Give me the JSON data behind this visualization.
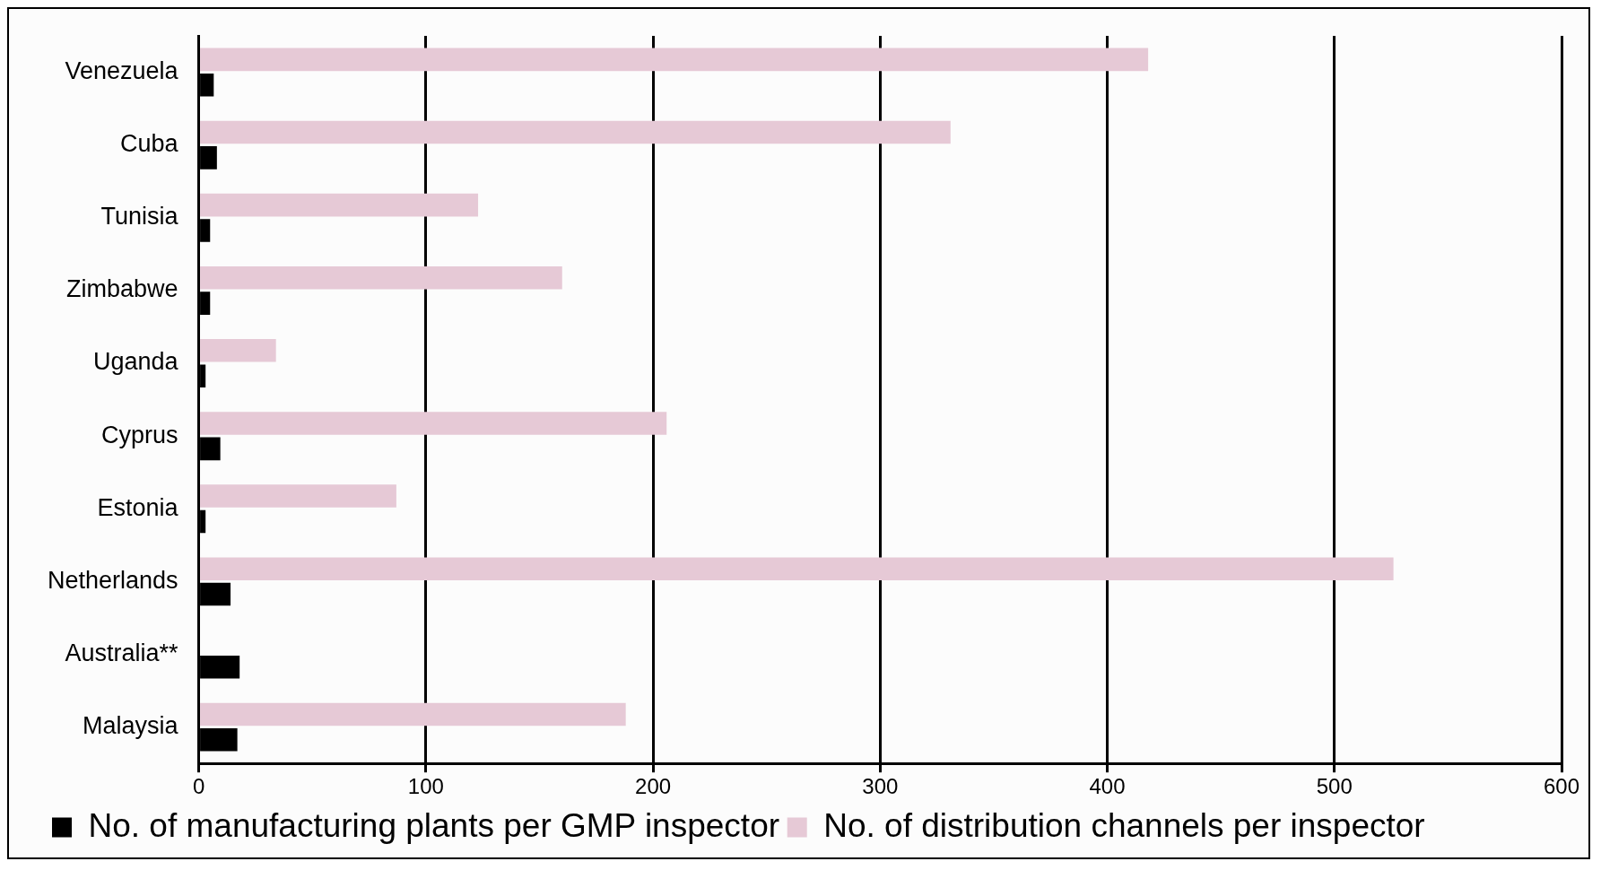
{
  "chart_data": {
    "type": "bar",
    "orientation": "horizontal",
    "categories": [
      "Venezuela",
      "Cuba",
      "Tunisia",
      "Zimbabwe",
      "Uganda",
      "Cyprus",
      "Estonia",
      "Netherlands",
      "Australia**",
      "Malaysia"
    ],
    "series": [
      {
        "name": "No. of manufacturing plants per GMP inspector",
        "color": "#000000",
        "values": [
          6.6,
          8,
          5,
          5,
          3,
          9.5,
          3,
          14,
          18,
          17
        ]
      },
      {
        "name": "No. of distribution channels per inspector",
        "color": "#e6c9d6",
        "values": [
          418,
          331,
          123,
          160,
          34,
          206,
          87,
          526,
          null,
          188
        ]
      }
    ],
    "xlim": [
      0,
      600
    ],
    "xticks": [
      0,
      100,
      200,
      300,
      400,
      500,
      600
    ],
    "grid": "x",
    "legend": "bottom"
  }
}
